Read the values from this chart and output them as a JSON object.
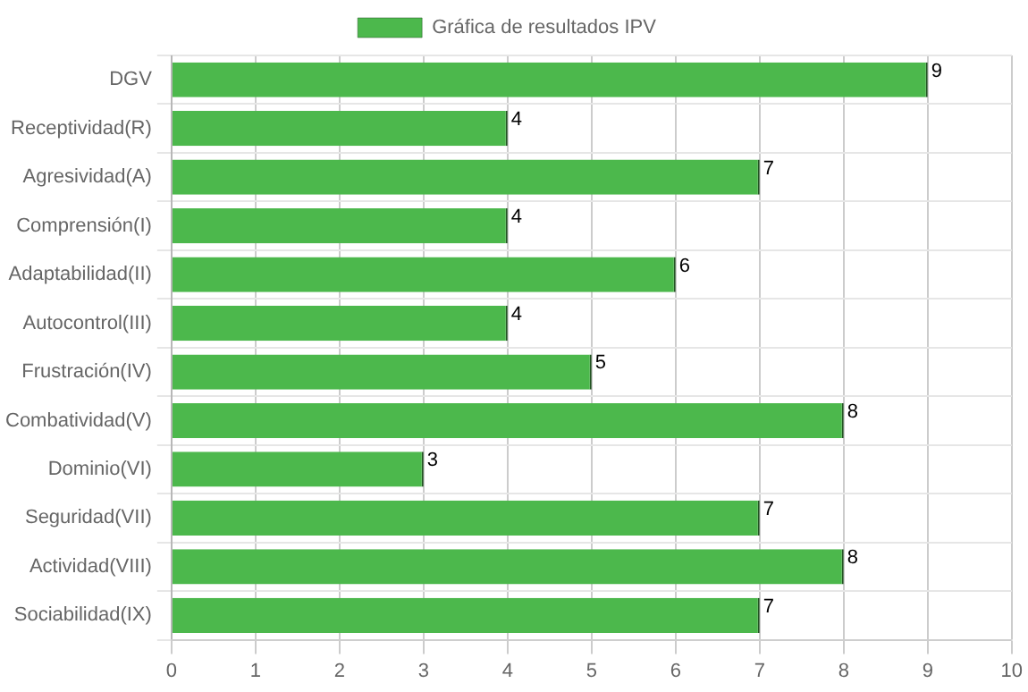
{
  "chart_data": {
    "type": "bar",
    "orientation": "horizontal",
    "categories": [
      "DGV",
      "Receptividad(R)",
      "Agresividad(A)",
      "Comprensión(I)",
      "Adaptabilidad(II)",
      "Autocontrol(III)",
      "Frustración(IV)",
      "Combatividad(V)",
      "Dominio(VI)",
      "Seguridad(VII)",
      "Actividad(VIII)",
      "Sociabilidad(IX)"
    ],
    "series": [
      {
        "name": "Gráfica de resultados IPV",
        "color": "#4cb84c",
        "values": [
          9,
          4,
          7,
          4,
          6,
          4,
          5,
          8,
          3,
          7,
          8,
          7
        ]
      }
    ],
    "xlim": [
      0,
      10
    ],
    "xticks": [
      0,
      1,
      2,
      3,
      4,
      5,
      6,
      7,
      8,
      9,
      10
    ],
    "grid": true,
    "legend": "top",
    "data_labels": true
  }
}
